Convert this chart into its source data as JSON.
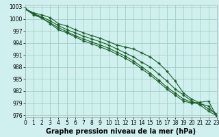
{
  "xlabel": "Graphe pression niveau de la mer (hPa)",
  "background_color": "#cff0ee",
  "grid_color": "#99ccbb",
  "line_color": "#1a5c28",
  "xlim": [
    0,
    23
  ],
  "ylim": [
    975.5,
    1003.5
  ],
  "yticks": [
    976,
    979,
    982,
    985,
    988,
    991,
    994,
    997,
    1000,
    1003
  ],
  "xticks": [
    0,
    1,
    2,
    3,
    4,
    5,
    6,
    7,
    8,
    9,
    10,
    11,
    12,
    13,
    14,
    15,
    16,
    17,
    18,
    19,
    20,
    21,
    22,
    23
  ],
  "series": [
    [
      1002.5,
      1001.5,
      1001.0,
      1000.3,
      998.8,
      998.2,
      997.3,
      996.5,
      995.8,
      995.2,
      994.3,
      993.5,
      993.0,
      992.5,
      991.5,
      990.5,
      989.0,
      987.0,
      984.5,
      981.5,
      980.0,
      979.0,
      977.5,
      976.3
    ],
    [
      1002.5,
      1001.3,
      1000.5,
      999.5,
      998.3,
      997.3,
      996.5,
      995.7,
      995.0,
      994.3,
      993.5,
      992.5,
      991.5,
      990.5,
      989.2,
      988.0,
      986.3,
      984.5,
      982.5,
      981.0,
      979.5,
      978.5,
      977.0,
      975.8
    ],
    [
      1002.5,
      1001.0,
      1000.2,
      998.8,
      997.3,
      996.5,
      995.5,
      994.5,
      993.8,
      993.0,
      992.2,
      991.2,
      990.2,
      989.0,
      987.5,
      986.0,
      984.3,
      982.5,
      981.0,
      979.5,
      979.0,
      979.2,
      979.5,
      975.7
    ],
    [
      1002.5,
      1001.2,
      1000.2,
      999.0,
      997.8,
      996.8,
      995.8,
      995.0,
      994.2,
      993.5,
      992.7,
      991.7,
      990.7,
      989.5,
      988.0,
      986.5,
      984.8,
      983.0,
      981.5,
      980.0,
      979.2,
      978.8,
      978.3,
      975.7
    ]
  ],
  "marker": "+",
  "markersize": 3.5,
  "linewidth": 0.8,
  "tick_fontsize": 5.5,
  "xlabel_fontsize": 7,
  "xlabel_bold": true
}
